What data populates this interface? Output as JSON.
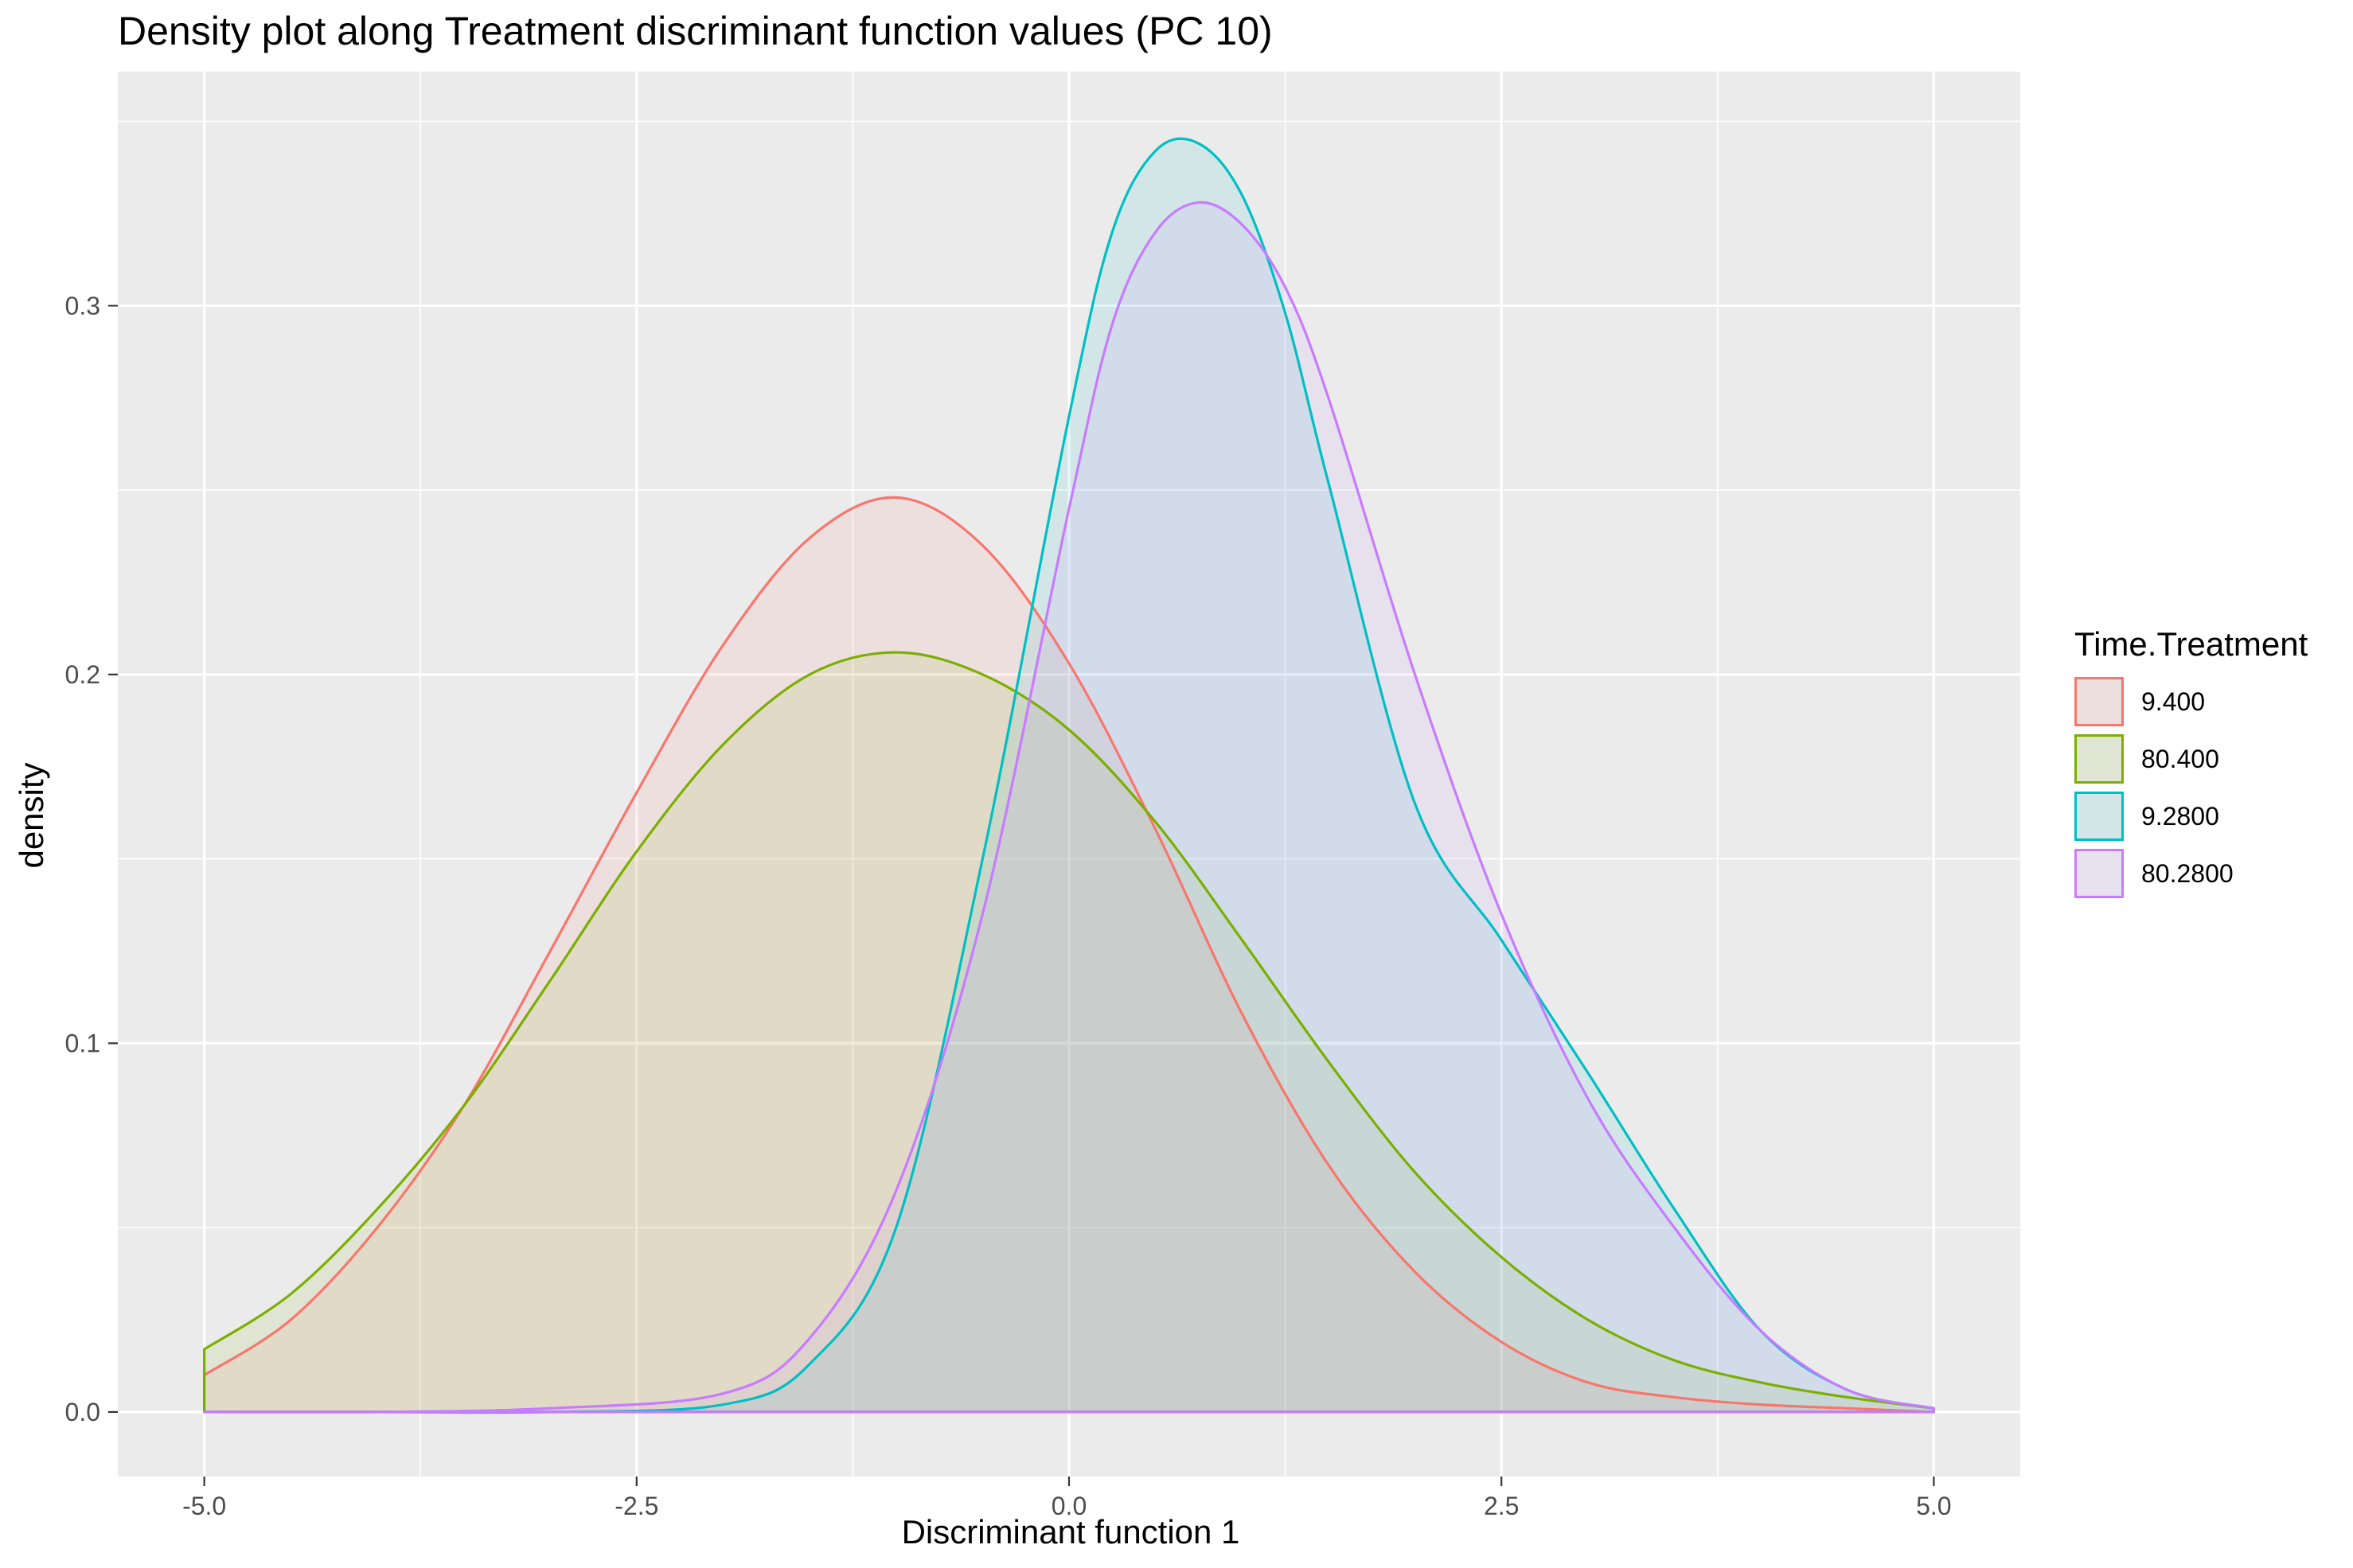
{
  "chart_data": {
    "type": "area",
    "title": "Density plot along Treatment discriminant function values (PC 10)",
    "xlabel": "Discriminant function 1",
    "ylabel": "density",
    "xlim": [
      -5.5,
      5.5
    ],
    "ylim": [
      -0.0175,
      0.3635
    ],
    "x_ticks": [
      -5.0,
      -2.5,
      0.0,
      2.5,
      5.0
    ],
    "x_tick_labels": [
      "-5.0",
      "-2.5",
      "0.0",
      "2.5",
      "5.0"
    ],
    "y_ticks": [
      0.0,
      0.1,
      0.2,
      0.3
    ],
    "y_tick_labels": [
      "0.0",
      "0.1",
      "0.2",
      "0.3"
    ],
    "grid": true,
    "legend_position": "right",
    "legend_title": "Time.Treatment",
    "series": [
      {
        "name": "9.400",
        "color": "#F8766D",
        "x": [
          -5.0,
          -4.5,
          -4.0,
          -3.5,
          -3.0,
          -2.5,
          -2.0,
          -1.5,
          -1.0,
          -0.5,
          0.0,
          0.5,
          1.0,
          1.5,
          2.0,
          2.5,
          3.0,
          3.5,
          4.0,
          4.5,
          5.0
        ],
        "y": [
          0.01,
          0.025,
          0.05,
          0.083,
          0.125,
          0.168,
          0.208,
          0.237,
          0.248,
          0.235,
          0.203,
          0.158,
          0.108,
          0.067,
          0.038,
          0.019,
          0.008,
          0.004,
          0.002,
          0.001,
          0.0
        ]
      },
      {
        "name": "80.400",
        "color": "#7CAE00",
        "x": [
          -5.0,
          -4.5,
          -4.0,
          -3.5,
          -3.0,
          -2.5,
          -2.0,
          -1.5,
          -1.0,
          -0.5,
          0.0,
          0.5,
          1.0,
          1.5,
          2.0,
          2.5,
          3.0,
          3.5,
          4.0,
          4.5,
          5.0
        ],
        "y": [
          0.017,
          0.032,
          0.055,
          0.083,
          0.117,
          0.152,
          0.181,
          0.2,
          0.206,
          0.2,
          0.185,
          0.16,
          0.128,
          0.095,
          0.065,
          0.042,
          0.025,
          0.014,
          0.008,
          0.004,
          0.001
        ]
      },
      {
        "name": "9.2800",
        "color": "#00BFC4",
        "x": [
          -5.0,
          -4.0,
          -3.0,
          -2.0,
          -1.5,
          -1.0,
          -0.5,
          0.0,
          0.25,
          0.5,
          0.75,
          1.0,
          1.25,
          1.5,
          2.0,
          2.5,
          3.0,
          3.5,
          4.0,
          4.5,
          5.0
        ],
        "y": [
          0.0,
          0.0,
          0.0,
          0.002,
          0.013,
          0.05,
          0.15,
          0.27,
          0.32,
          0.342,
          0.344,
          0.33,
          0.298,
          0.252,
          0.165,
          0.128,
          0.092,
          0.055,
          0.022,
          0.006,
          0.001
        ]
      },
      {
        "name": "80.2800",
        "color": "#C77CFF",
        "x": [
          -5.0,
          -4.0,
          -3.0,
          -2.0,
          -1.5,
          -1.0,
          -0.5,
          0.0,
          0.25,
          0.5,
          0.75,
          1.0,
          1.25,
          1.5,
          2.0,
          2.5,
          3.0,
          3.5,
          4.0,
          4.5,
          5.0
        ],
        "y": [
          0.0,
          0.0,
          0.001,
          0.005,
          0.02,
          0.06,
          0.135,
          0.245,
          0.295,
          0.32,
          0.328,
          0.322,
          0.305,
          0.275,
          0.2,
          0.135,
          0.085,
          0.05,
          0.022,
          0.006,
          0.001
        ]
      }
    ]
  }
}
